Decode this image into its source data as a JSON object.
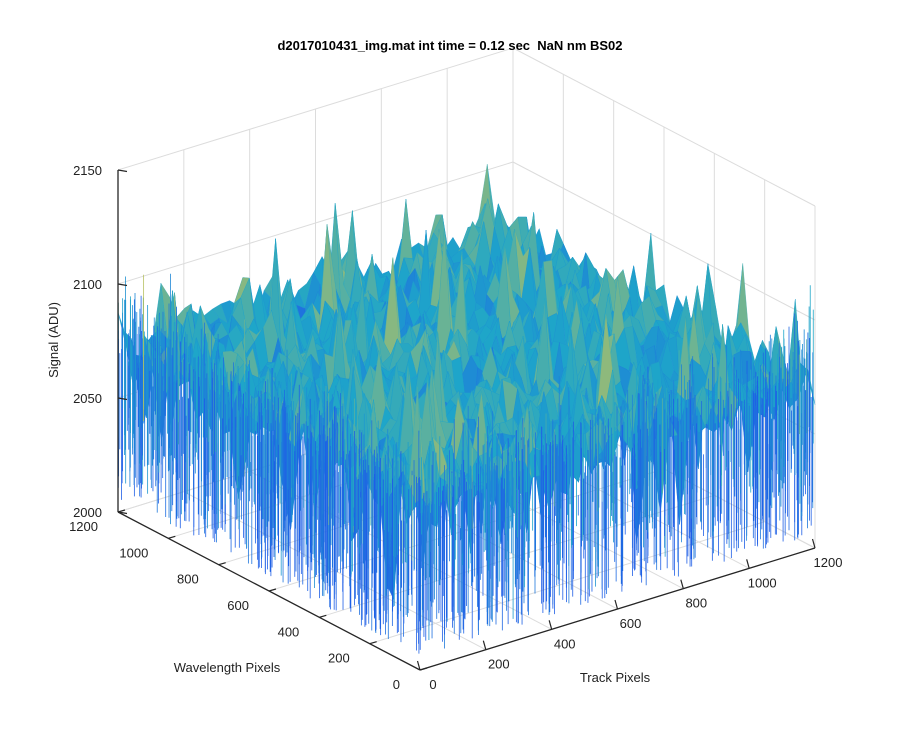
{
  "chart_data": {
    "type": "surface",
    "title": "d2017010431_img.mat int time = 0.12 sec  NaN nm BS02",
    "xlabel": "Track Pixels",
    "ylabel": "Wavelength Pixels",
    "zlabel": "Signal (ADU)",
    "xlim": [
      0,
      1200
    ],
    "ylim": [
      0,
      1200
    ],
    "zlim": [
      2000,
      2150
    ],
    "x_ticks": [
      0,
      200,
      400,
      600,
      800,
      1000,
      1200
    ],
    "x_tick_labels": [
      "0",
      "200",
      "400",
      "600",
      "800",
      "1000",
      "1200"
    ],
    "y_ticks": [
      0,
      200,
      400,
      600,
      800,
      1000,
      1200
    ],
    "y_tick_labels": [
      "0",
      "200",
      "400",
      "600",
      "800",
      "1000",
      "1200"
    ],
    "z_ticks": [
      2000,
      2050,
      2100,
      2150
    ],
    "z_tick_labels": [
      "2000",
      "2050",
      "2100",
      "2150"
    ],
    "data_extent": {
      "x": [
        0,
        1200
      ],
      "y": [
        0,
        1200
      ]
    },
    "signal_mean": 2072,
    "signal_typical_range": [
      2045,
      2100
    ],
    "signal_peak": 2127,
    "colormap": "parula",
    "grid": true,
    "colors": {
      "axis": "#262626",
      "grid": "#dcdcdc",
      "low": "#1f5fe6",
      "mid": "#1ea6c9",
      "high": "#e6c840"
    }
  }
}
